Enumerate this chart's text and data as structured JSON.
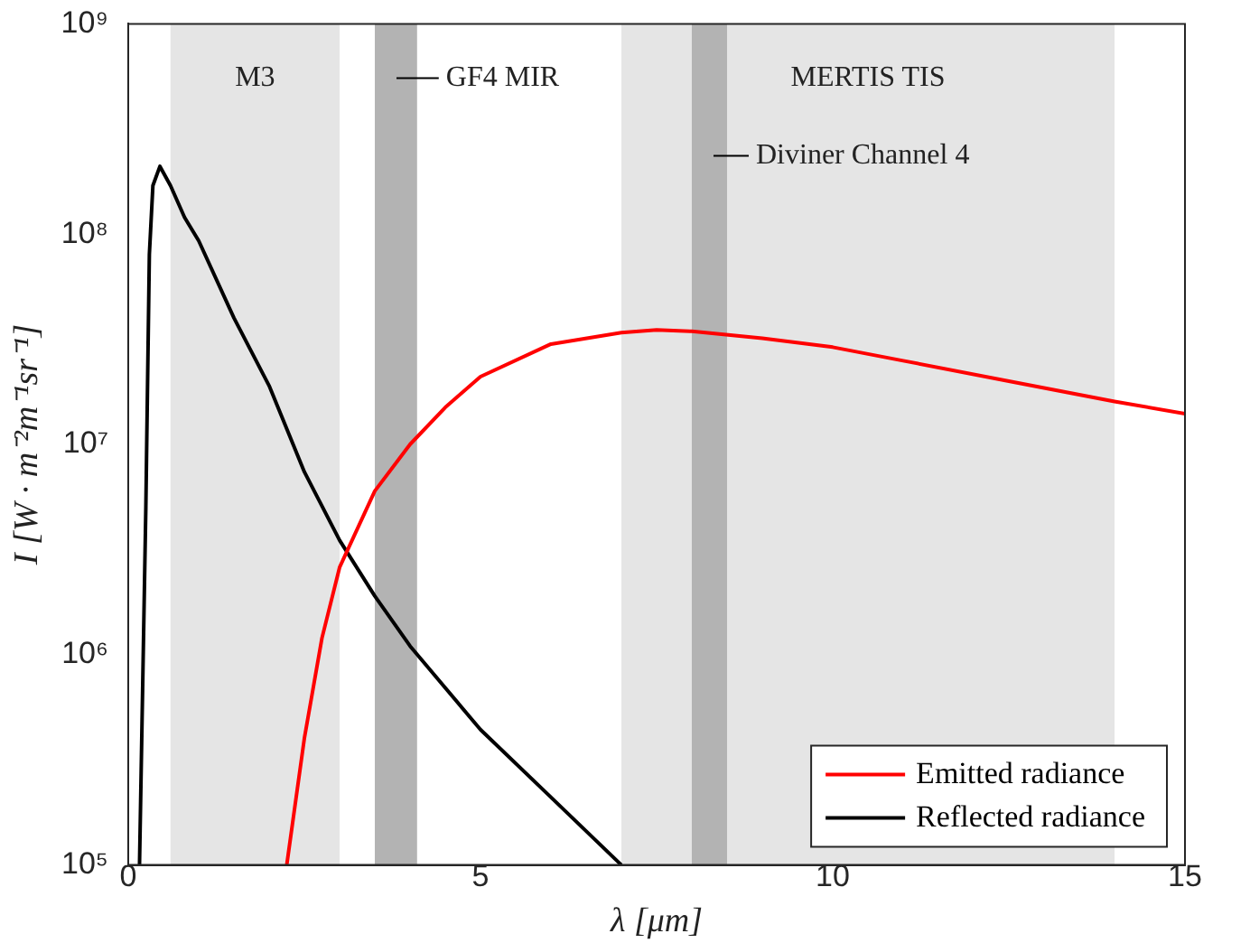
{
  "chart_data": {
    "type": "line",
    "xlabel": "λ [μm]",
    "ylabel": "I [W · m⁻²m⁻¹sr⁻¹]",
    "xlim": [
      0,
      15
    ],
    "xticks": [
      0,
      5,
      10,
      15
    ],
    "ylim": [
      100000,
      1000000000
    ],
    "yticks": [
      {
        "value": 100000,
        "label": "10⁵"
      },
      {
        "value": 1000000,
        "label": "10⁶"
      },
      {
        "value": 10000000,
        "label": "10⁷"
      },
      {
        "value": 100000000,
        "label": "10⁸"
      },
      {
        "value": 1000000000,
        "label": "10⁹"
      }
    ],
    "log": "y",
    "grid": false,
    "legend": "bottom right",
    "marker": "none",
    "line_style": "solid",
    "bands": [
      {
        "axis": "x",
        "from": 0.6,
        "to": 3.0,
        "label": "M3",
        "color": "#e5e5e5"
      },
      {
        "axis": "x",
        "from": 3.5,
        "to": 4.1,
        "label": "GF4 MIR",
        "color": "#b3b3b3"
      },
      {
        "axis": "x",
        "from": 7.0,
        "to": 14.0,
        "label": "MERTIS TIS",
        "color": "#e5e5e5"
      },
      {
        "axis": "x",
        "from": 8.0,
        "to": 8.5,
        "label": "Diviner Channel 4",
        "color": "#b3b3b3"
      }
    ],
    "series": [
      {
        "name": "Emitted radiance",
        "color": "#ff0000",
        "x": [
          2.25,
          2.5,
          2.75,
          3,
          3.5,
          4,
          4.5,
          5,
          6,
          7,
          7.5,
          8,
          9,
          10,
          11,
          12.5,
          14,
          15
        ],
        "values": [
          100000,
          400000,
          1200000,
          2600000,
          6000000,
          10000000,
          15000000,
          21000000,
          30000000,
          34000000,
          35000000,
          34500000,
          32000000,
          29000000,
          25000000,
          20000000,
          16000000,
          14000000
        ]
      },
      {
        "name": "Reflected radiance",
        "color": "#000000",
        "x": [
          0.16,
          0.25,
          0.3,
          0.35,
          0.45,
          0.6,
          0.8,
          1,
          1.5,
          2,
          2.5,
          3,
          3.5,
          4,
          5,
          6,
          7
        ],
        "values": [
          100000,
          5000000,
          80000000,
          170000000,
          210000000,
          170000000,
          120000000,
          93000000,
          40000000,
          19000000,
          7400000,
          3500000,
          1900000,
          1100000,
          440000,
          210000,
          100000
        ]
      }
    ]
  }
}
